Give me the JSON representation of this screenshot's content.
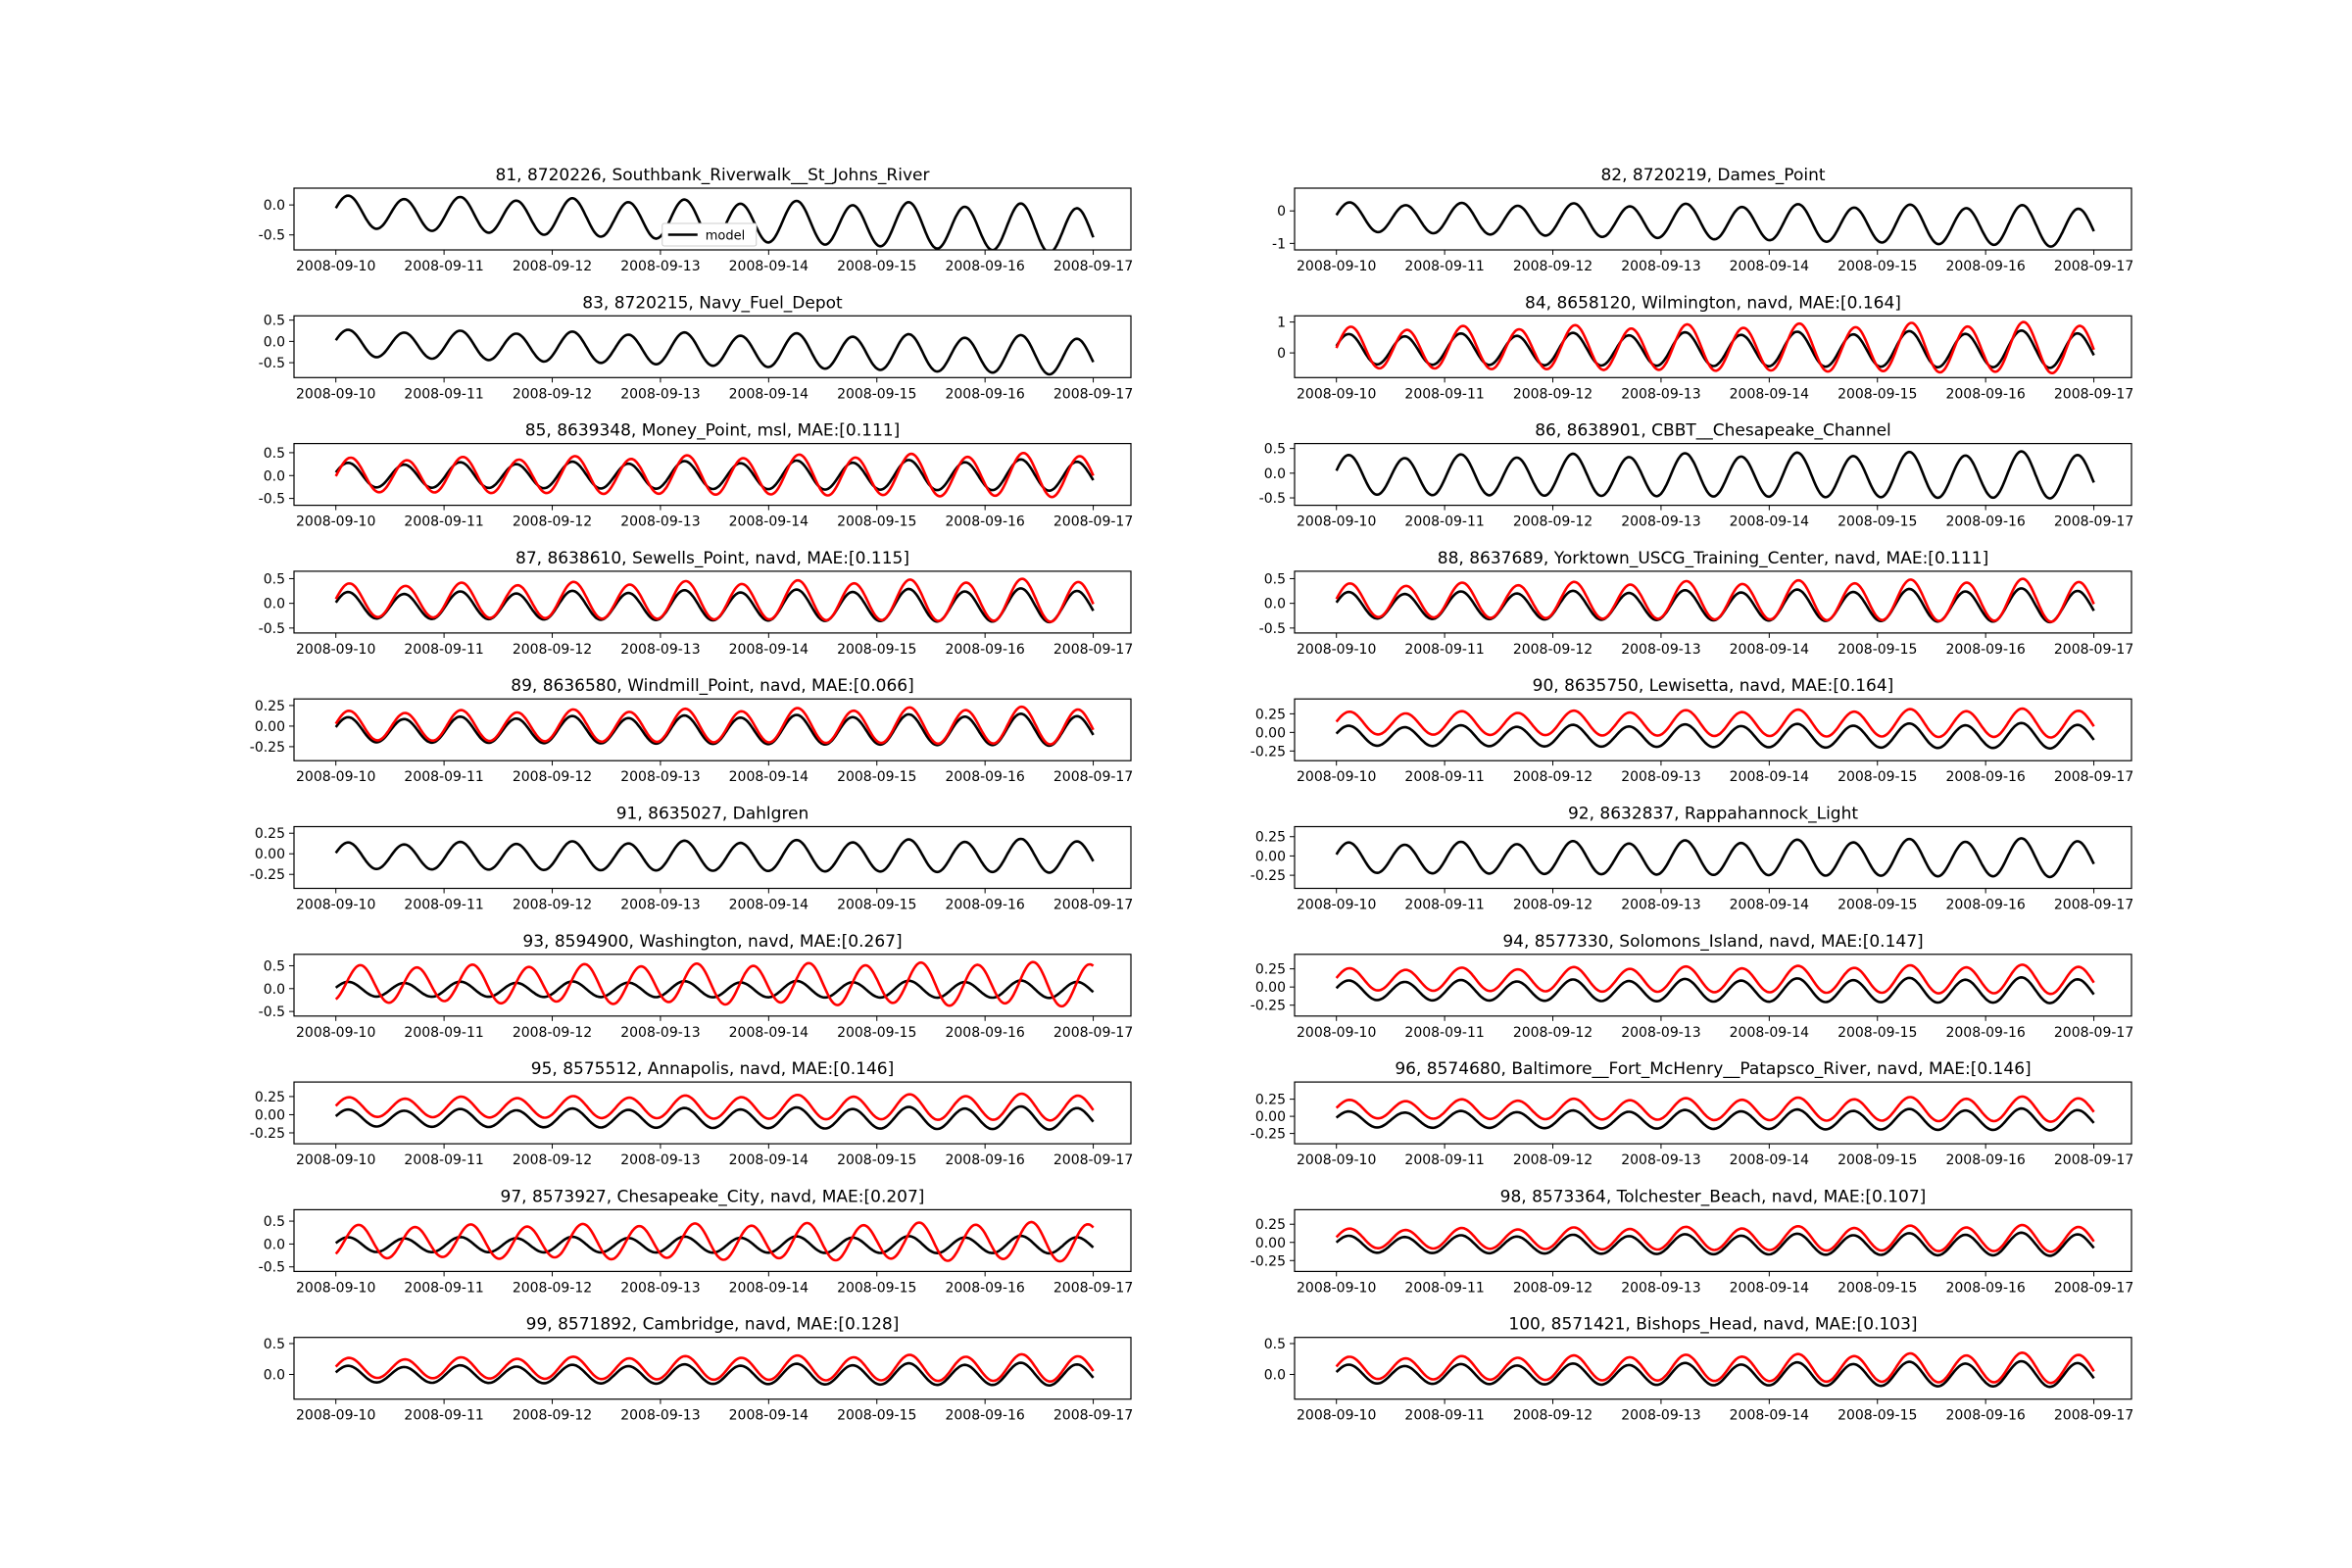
{
  "colors": {
    "model": "#000000",
    "observation": "#ff0000",
    "axes": "#000000",
    "background": "#ffffff"
  },
  "legend": {
    "label": "model",
    "panel": 0,
    "placement": "lower-center"
  },
  "x_tick_labels": [
    "2008-09-10",
    "2008-09-11",
    "2008-09-12",
    "2008-09-13",
    "2008-09-14",
    "2008-09-15",
    "2008-09-16",
    "2008-09-17"
  ],
  "chart_data": [
    {
      "type": "line",
      "title": "81, 8720226, Southbank_Riverwalk__St_Johns_River",
      "yticks": [
        "0.0",
        "-0.5"
      ],
      "ytick_values": [
        0,
        -0.5
      ],
      "ylim": [
        -0.75,
        0.28
      ],
      "series": [
        {
          "name": "model",
          "values": {
            "mean": -0.12,
            "amp": 0.3,
            "amp_trend": 0.55,
            "mean_trend": -0.3,
            "phase": 0
          }
        }
      ]
    },
    {
      "type": "line",
      "title": "82, 8720219, Dames_Point",
      "yticks": [
        "0",
        "-1"
      ],
      "ytick_values": [
        0,
        -1
      ],
      "ylim": [
        -1.2,
        0.7
      ],
      "series": [
        {
          "name": "model",
          "values": {
            "mean": -0.2,
            "amp": 0.5,
            "amp_trend": 0.45,
            "mean_trend": -0.3,
            "phase": 0.1
          }
        }
      ]
    },
    {
      "type": "line",
      "title": "83, 8720215, Navy_Fuel_Depot",
      "yticks": [
        "0.5",
        "0.0",
        "-0.5"
      ],
      "ytick_values": [
        0.5,
        0,
        -0.5
      ],
      "ylim": [
        -0.85,
        0.6
      ],
      "series": [
        {
          "name": "model",
          "values": {
            "mean": -0.05,
            "amp": 0.35,
            "amp_trend": 0.5,
            "mean_trend": -0.3,
            "phase": 0
          }
        }
      ]
    },
    {
      "type": "line",
      "title": "84, 8658120, Wilmington, navd, MAE:[0.164]",
      "yticks": [
        "1",
        "0"
      ],
      "ytick_values": [
        1,
        0
      ],
      "ylim": [
        -0.8,
        1.2
      ],
      "series": [
        {
          "name": "model",
          "values": {
            "mean": 0.1,
            "amp": 0.55,
            "amp_trend": 0.25,
            "mean_trend": 0,
            "phase": 0
          }
        },
        {
          "name": "observation",
          "values": {
            "mean": 0.15,
            "amp": 0.75,
            "amp_trend": 0.25,
            "mean_trend": 0,
            "phase": 0.25
          }
        }
      ]
    },
    {
      "type": "line",
      "title": "85, 8639348, Money_Point, msl, MAE:[0.111]",
      "yticks": [
        "0.5",
        "0.0",
        "-0.5"
      ],
      "ytick_values": [
        0.5,
        0,
        -0.5
      ],
      "ylim": [
        -0.65,
        0.7
      ],
      "series": [
        {
          "name": "model",
          "values": {
            "mean": 0,
            "amp": 0.3,
            "amp_trend": 0.3,
            "mean_trend": 0,
            "phase": 0
          }
        },
        {
          "name": "observation",
          "values": {
            "mean": 0,
            "amp": 0.42,
            "amp_trend": 0.3,
            "mean_trend": 0,
            "phase": 0.3
          }
        }
      ]
    },
    {
      "type": "line",
      "title": "86, 8638901, CBBT__Chesapeake_Channel",
      "yticks": [
        "0.5",
        "0.0",
        "-0.5"
      ],
      "ytick_values": [
        0.5,
        0,
        -0.5
      ],
      "ylim": [
        -0.65,
        0.6
      ],
      "series": [
        {
          "name": "model",
          "values": {
            "mean": -0.05,
            "amp": 0.45,
            "amp_trend": 0.2,
            "mean_trend": 0,
            "phase": 0
          }
        }
      ]
    },
    {
      "type": "line",
      "title": "87, 8638610, Sewells_Point, navd, MAE:[0.115]",
      "yticks": [
        "0.5",
        "0.0",
        "-0.5"
      ],
      "ytick_values": [
        0.5,
        0,
        -0.5
      ],
      "ylim": [
        -0.6,
        0.65
      ],
      "series": [
        {
          "name": "model",
          "values": {
            "mean": -0.05,
            "amp": 0.3,
            "amp_trend": 0.3,
            "mean_trend": 0,
            "phase": 0
          }
        },
        {
          "name": "observation",
          "values": {
            "mean": 0.05,
            "amp": 0.38,
            "amp_trend": 0.3,
            "mean_trend": 0,
            "phase": 0.15
          }
        }
      ]
    },
    {
      "type": "line",
      "title": "88, 8637689, Yorktown_USCG_Training_Center, navd, MAE:[0.111]",
      "yticks": [
        "0.5",
        "0.0",
        "-0.5"
      ],
      "ytick_values": [
        0.5,
        0,
        -0.5
      ],
      "ylim": [
        -0.6,
        0.65
      ],
      "series": [
        {
          "name": "model",
          "values": {
            "mean": -0.05,
            "amp": 0.3,
            "amp_trend": 0.3,
            "mean_trend": 0,
            "phase": 0
          }
        },
        {
          "name": "observation",
          "values": {
            "mean": 0.05,
            "amp": 0.38,
            "amp_trend": 0.3,
            "mean_trend": 0,
            "phase": 0.15
          }
        }
      ]
    },
    {
      "type": "line",
      "title": "89, 8636580, Windmill_Point, navd, MAE:[0.066]",
      "yticks": [
        "0.25",
        "0.00",
        "-0.25"
      ],
      "ytick_values": [
        0.25,
        0,
        -0.25
      ],
      "ylim": [
        -0.42,
        0.33
      ],
      "series": [
        {
          "name": "model",
          "values": {
            "mean": -0.05,
            "amp": 0.17,
            "amp_trend": 0.3,
            "mean_trend": 0,
            "phase": 0
          }
        },
        {
          "name": "observation",
          "values": {
            "mean": 0,
            "amp": 0.2,
            "amp_trend": 0.3,
            "mean_trend": 0,
            "phase": 0.1
          }
        }
      ]
    },
    {
      "type": "line",
      "title": "90, 8635750, Lewisetta, navd, MAE:[0.164]",
      "yticks": [
        "0.25",
        "0.00",
        "-0.25"
      ],
      "ytick_values": [
        0.25,
        0,
        -0.25
      ],
      "ylim": [
        -0.38,
        0.45
      ],
      "series": [
        {
          "name": "model",
          "values": {
            "mean": -0.05,
            "amp": 0.15,
            "amp_trend": 0.3,
            "mean_trend": 0,
            "phase": 0
          }
        },
        {
          "name": "observation",
          "values": {
            "mean": 0.12,
            "amp": 0.17,
            "amp_trend": 0.3,
            "mean_trend": 0,
            "phase": 0.1
          }
        }
      ]
    },
    {
      "type": "line",
      "title": "91, 8635027, Dahlgren",
      "yticks": [
        "0.25",
        "0.00",
        "-0.25"
      ],
      "ytick_values": [
        0.25,
        0,
        -0.25
      ],
      "ylim": [
        -0.42,
        0.33
      ],
      "series": [
        {
          "name": "model",
          "values": {
            "mean": -0.03,
            "amp": 0.18,
            "amp_trend": 0.3,
            "mean_trend": 0,
            "phase": 0
          }
        }
      ]
    },
    {
      "type": "line",
      "title": "92, 8632837, Rappahannock_Light",
      "yticks": [
        "0.25",
        "0.00",
        "-0.25"
      ],
      "ytick_values": [
        0.25,
        0,
        -0.25
      ],
      "ylim": [
        -0.42,
        0.38
      ],
      "series": [
        {
          "name": "model",
          "values": {
            "mean": -0.03,
            "amp": 0.22,
            "amp_trend": 0.3,
            "mean_trend": 0,
            "phase": 0
          }
        }
      ]
    },
    {
      "type": "line",
      "title": "93, 8594900, Washington, navd, MAE:[0.267]",
      "yticks": [
        "0.5",
        "0.0",
        "-0.5"
      ],
      "ytick_values": [
        0.5,
        0,
        -0.5
      ],
      "ylim": [
        -0.6,
        0.75
      ],
      "series": [
        {
          "name": "model",
          "values": {
            "mean": -0.02,
            "amp": 0.18,
            "amp_trend": 0.2,
            "mean_trend": 0,
            "phase": 0
          }
        },
        {
          "name": "observation",
          "values": {
            "mean": 0.1,
            "amp": 0.45,
            "amp_trend": 0.2,
            "mean_trend": 0,
            "phase": 1.4
          }
        }
      ]
    },
    {
      "type": "line",
      "title": "94, 8577330, Solomons_Island, navd, MAE:[0.147]",
      "yticks": [
        "0.25",
        "0.00",
        "-0.25"
      ],
      "ytick_values": [
        0.25,
        0,
        -0.25
      ],
      "ylim": [
        -0.4,
        0.45
      ],
      "series": [
        {
          "name": "model",
          "values": {
            "mean": -0.05,
            "amp": 0.15,
            "amp_trend": 0.35,
            "mean_trend": 0,
            "phase": 0
          }
        },
        {
          "name": "observation",
          "values": {
            "mean": 0.1,
            "amp": 0.17,
            "amp_trend": 0.35,
            "mean_trend": 0,
            "phase": 0.1
          }
        }
      ]
    },
    {
      "type": "line",
      "title": "95, 8575512, Annapolis, navd, MAE:[0.146]",
      "yticks": [
        "0.25",
        "0.00",
        "-0.25"
      ],
      "ytick_values": [
        0.25,
        0,
        -0.25
      ],
      "ylim": [
        -0.4,
        0.45
      ],
      "series": [
        {
          "name": "model",
          "values": {
            "mean": -0.05,
            "amp": 0.13,
            "amp_trend": 0.4,
            "mean_trend": 0,
            "phase": 0
          }
        },
        {
          "name": "observation",
          "values": {
            "mean": 0.1,
            "amp": 0.15,
            "amp_trend": 0.4,
            "mean_trend": 0,
            "phase": 0.1
          }
        }
      ]
    },
    {
      "type": "line",
      "title": "96, 8574680, Baltimore__Fort_McHenry__Patapsco_River, navd, MAE:[0.146]",
      "yticks": [
        "0.25",
        "0.00",
        "-0.25"
      ],
      "ytick_values": [
        0.25,
        0,
        -0.25
      ],
      "ylim": [
        -0.4,
        0.5
      ],
      "series": [
        {
          "name": "model",
          "values": {
            "mean": -0.05,
            "amp": 0.13,
            "amp_trend": 0.4,
            "mean_trend": 0,
            "phase": 0
          }
        },
        {
          "name": "observation",
          "values": {
            "mean": 0.1,
            "amp": 0.15,
            "amp_trend": 0.4,
            "mean_trend": 0,
            "phase": 0.1
          }
        }
      ]
    },
    {
      "type": "line",
      "title": "97, 8573927, Chesapeake_City, navd, MAE:[0.207]",
      "yticks": [
        "0.5",
        "0.0",
        "-0.5"
      ],
      "ytick_values": [
        0.5,
        0,
        -0.5
      ],
      "ylim": [
        -0.6,
        0.75
      ],
      "series": [
        {
          "name": "model",
          "values": {
            "mean": -0.02,
            "amp": 0.18,
            "amp_trend": 0.2,
            "mean_trend": 0,
            "phase": 0
          }
        },
        {
          "name": "observation",
          "values": {
            "mean": 0.05,
            "amp": 0.4,
            "amp_trend": 0.2,
            "mean_trend": 0,
            "phase": 1.2
          }
        }
      ]
    },
    {
      "type": "line",
      "title": "98, 8573364, Tolchester_Beach, navd, MAE:[0.107]",
      "yticks": [
        "0.25",
        "0.00",
        "-0.25"
      ],
      "ytick_values": [
        0.25,
        0,
        -0.25
      ],
      "ylim": [
        -0.4,
        0.45
      ],
      "series": [
        {
          "name": "model",
          "values": {
            "mean": -0.03,
            "amp": 0.13,
            "amp_trend": 0.4,
            "mean_trend": 0,
            "phase": 0
          }
        },
        {
          "name": "observation",
          "values": {
            "mean": 0.05,
            "amp": 0.15,
            "amp_trend": 0.4,
            "mean_trend": 0,
            "phase": 0.1
          }
        }
      ]
    },
    {
      "type": "line",
      "title": "99, 8571892, Cambridge, navd, MAE:[0.128]",
      "yticks": [
        "0.5",
        "0.0"
      ],
      "ytick_values": [
        0.5,
        0
      ],
      "ylim": [
        -0.4,
        0.6
      ],
      "series": [
        {
          "name": "model",
          "values": {
            "mean": 0,
            "amp": 0.15,
            "amp_trend": 0.4,
            "mean_trend": 0,
            "phase": 0
          }
        },
        {
          "name": "observation",
          "values": {
            "mean": 0.1,
            "amp": 0.18,
            "amp_trend": 0.4,
            "mean_trend": 0,
            "phase": 0.1
          }
        }
      ]
    },
    {
      "type": "line",
      "title": "100, 8571421, Bishops_Head, navd, MAE:[0.103]",
      "yticks": [
        "0.5",
        "0.0"
      ],
      "ytick_values": [
        0.5,
        0
      ],
      "ylim": [
        -0.4,
        0.6
      ],
      "series": [
        {
          "name": "model",
          "values": {
            "mean": 0,
            "amp": 0.17,
            "amp_trend": 0.4,
            "mean_trend": 0,
            "phase": 0
          }
        },
        {
          "name": "observation",
          "values": {
            "mean": 0.1,
            "amp": 0.2,
            "amp_trend": 0.4,
            "mean_trend": 0,
            "phase": 0.1
          }
        }
      ]
    }
  ]
}
